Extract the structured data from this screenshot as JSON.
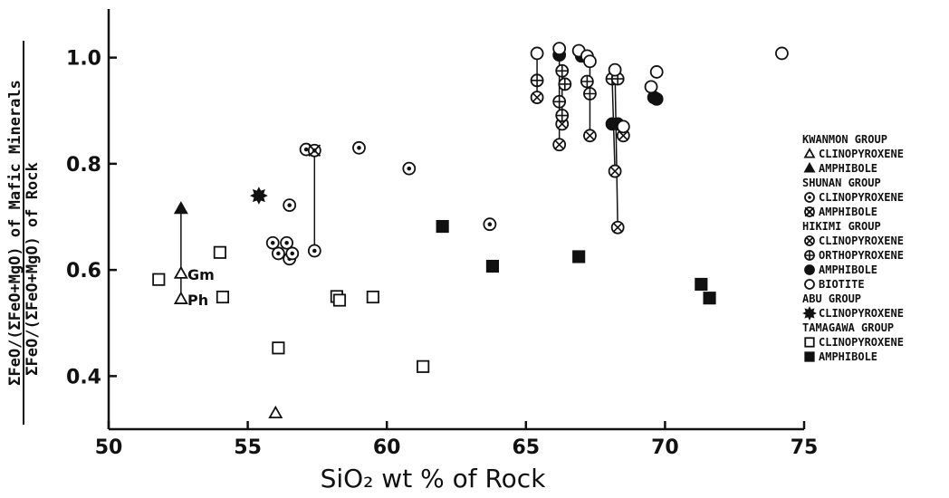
{
  "chart_data": {
    "type": "scatter",
    "xlabel": "SiO₂ wt % of Rock",
    "ylabel_numerator": "ΣFeO/(ΣFeO+MgO) of Mafic Minerals",
    "ylabel_denominator": "ΣFeO/(ΣFeO+MgO) of Rock",
    "xlim": [
      50,
      75
    ],
    "ylim": [
      0.3,
      1.1
    ],
    "x_ticks": [
      50,
      55,
      60,
      65,
      70,
      75
    ],
    "x_tick_labels": [
      "50",
      "55",
      "60",
      "65",
      "70",
      "75"
    ],
    "y_ticks": [
      0.4,
      0.6,
      0.8,
      1.0
    ],
    "y_tick_labels": [
      "0.4",
      "0.6",
      "0.8",
      "1.0"
    ],
    "grid": false,
    "legend_position": "right",
    "legend": [
      {
        "group": "KWANMON GROUP",
        "items": [
          {
            "marker": "triangle-open",
            "label": "CLINOPYROXENE"
          },
          {
            "marker": "triangle-filled",
            "label": "AMPHIBOLE"
          }
        ]
      },
      {
        "group": "SHUNAN GROUP",
        "items": [
          {
            "marker": "circle-dot",
            "label": "CLINOPYROXENE"
          },
          {
            "marker": "circle-dot-star",
            "label": "AMPHIBOLE"
          }
        ]
      },
      {
        "group": "HIKIMI GROUP",
        "items": [
          {
            "marker": "circle-cross",
            "label": "CLINOPYROXENE"
          },
          {
            "marker": "circle-plus",
            "label": "ORTHOPYROXENE"
          },
          {
            "marker": "circle-filled",
            "label": "AMPHIBOLE"
          },
          {
            "marker": "circle-open",
            "label": "BIOTITE"
          }
        ]
      },
      {
        "group": "ABU GROUP",
        "items": [
          {
            "marker": "star-filled",
            "label": "CLINOPYROXENE"
          }
        ]
      },
      {
        "group": "TAMAGAWA GROUP",
        "items": [
          {
            "marker": "square-open",
            "label": "CLINOPYROXENE"
          },
          {
            "marker": "square-filled",
            "label": "AMPHIBOLE"
          }
        ]
      }
    ],
    "annotations": [
      "Gm",
      "Ph"
    ],
    "series": [
      {
        "name": "KWANMON GROUP CLINOPYROXENE",
        "marker": "triangle-open",
        "points": [
          [
            52.6,
            0.593
          ],
          [
            52.6,
            0.545
          ],
          [
            56.0,
            0.33
          ]
        ]
      },
      {
        "name": "KWANMON GROUP AMPHIBOLE",
        "marker": "triangle-filled",
        "points": [
          [
            52.6,
            0.715
          ]
        ]
      },
      {
        "name": "SHUNAN GROUP CLINOPYROXENE",
        "marker": "circle-dot",
        "points": [
          [
            55.9,
            0.651
          ],
          [
            56.1,
            0.631
          ],
          [
            56.4,
            0.651
          ],
          [
            56.5,
            0.722
          ],
          [
            56.5,
            0.621
          ],
          [
            56.6,
            0.631
          ],
          [
            57.1,
            0.827
          ],
          [
            57.4,
            0.636
          ],
          [
            59.0,
            0.83
          ],
          [
            60.8,
            0.791
          ],
          [
            63.7,
            0.686
          ]
        ]
      },
      {
        "name": "SHUNAN GROUP AMPHIBOLE",
        "marker": "circle-dot-star",
        "points": [
          [
            57.4,
            0.825
          ]
        ]
      },
      {
        "name": "HIKIMI GROUP CLINOPYROXENE",
        "marker": "circle-cross",
        "points": [
          [
            65.4,
            0.925
          ],
          [
            66.2,
            0.836
          ],
          [
            66.3,
            0.875
          ],
          [
            67.3,
            0.853
          ],
          [
            68.2,
            0.786
          ],
          [
            68.3,
            0.68
          ],
          [
            68.5,
            0.853
          ]
        ]
      },
      {
        "name": "HIKIMI GROUP ORTHOPYROXENE",
        "marker": "circle-plus",
        "points": [
          [
            65.4,
            0.957
          ],
          [
            66.2,
            0.917
          ],
          [
            66.3,
            0.975
          ],
          [
            66.3,
            0.891
          ],
          [
            66.4,
            0.95
          ],
          [
            67.2,
            0.955
          ],
          [
            67.3,
            0.932
          ],
          [
            68.1,
            0.96
          ],
          [
            68.3,
            0.96
          ]
        ]
      },
      {
        "name": "HIKIMI GROUP AMPHIBOLE",
        "marker": "circle-filled",
        "points": [
          [
            66.2,
            1.005
          ],
          [
            67.0,
            1.003
          ],
          [
            68.1,
            0.875
          ],
          [
            68.3,
            0.875
          ],
          [
            69.6,
            0.925
          ],
          [
            69.7,
            0.922
          ]
        ]
      },
      {
        "name": "HIKIMI GROUP BIOTITE",
        "marker": "circle-open",
        "points": [
          [
            65.4,
            1.008
          ],
          [
            66.2,
            1.017
          ],
          [
            66.9,
            1.013
          ],
          [
            67.2,
            1.003
          ],
          [
            67.3,
            0.993
          ],
          [
            68.2,
            0.977
          ],
          [
            68.5,
            0.87
          ],
          [
            69.5,
            0.945
          ],
          [
            69.7,
            0.973
          ],
          [
            74.2,
            1.008
          ]
        ]
      },
      {
        "name": "ABU GROUP CLINOPYROXENE",
        "marker": "star-filled",
        "points": [
          [
            55.4,
            0.74
          ]
        ]
      },
      {
        "name": "TAMAGAWA GROUP CLINOPYROXENE",
        "marker": "square-open",
        "points": [
          [
            51.8,
            0.582
          ],
          [
            54.0,
            0.633
          ],
          [
            54.1,
            0.549
          ],
          [
            56.1,
            0.453
          ],
          [
            58.2,
            0.55
          ],
          [
            58.3,
            0.543
          ],
          [
            59.5,
            0.549
          ],
          [
            61.3,
            0.418
          ]
        ]
      },
      {
        "name": "TAMAGAWA GROUP AMPHIBOLE",
        "marker": "square-filled",
        "points": [
          [
            62.0,
            0.682
          ],
          [
            63.8,
            0.607
          ],
          [
            66.9,
            0.625
          ],
          [
            71.3,
            0.573
          ],
          [
            71.6,
            0.547
          ]
        ]
      }
    ],
    "tie_lines": [
      [
        [
          52.6,
          0.715
        ],
        [
          52.6,
          0.593
        ]
      ],
      [
        [
          52.6,
          0.593
        ],
        [
          52.6,
          0.545
        ]
      ],
      [
        [
          57.4,
          0.825
        ],
        [
          57.4,
          0.636
        ]
      ],
      [
        [
          65.4,
          1.008
        ],
        [
          65.4,
          0.925
        ]
      ],
      [
        [
          66.2,
          1.017
        ],
        [
          66.2,
          0.836
        ]
      ],
      [
        [
          66.3,
          0.975
        ],
        [
          66.3,
          0.875
        ]
      ],
      [
        [
          66.9,
          1.013
        ],
        [
          67.2,
          1.003
        ]
      ],
      [
        [
          67.3,
          0.993
        ],
        [
          67.3,
          0.853
        ]
      ],
      [
        [
          68.2,
          0.977
        ],
        [
          68.3,
          0.68
        ]
      ],
      [
        [
          68.1,
          0.96
        ],
        [
          68.2,
          0.786
        ]
      ],
      [
        [
          68.5,
          0.87
        ],
        [
          68.5,
          0.853
        ]
      ],
      [
        [
          69.5,
          0.945
        ],
        [
          69.7,
          0.922
        ]
      ]
    ]
  }
}
